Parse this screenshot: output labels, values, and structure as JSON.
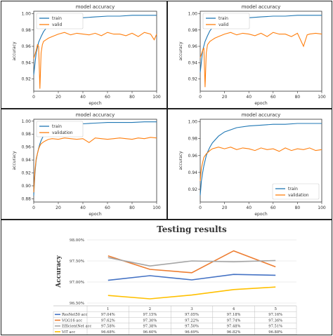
{
  "colors": {
    "train": "#1f77b4",
    "valid": "#ff7f0e",
    "resnet": "#4472c4",
    "vgg": "#ed7d31",
    "efficientnet": "#a5a5a5",
    "vit": "#ffc000"
  },
  "chart_data": [
    {
      "type": "line",
      "title": "model accuracy",
      "xlabel": "epoch",
      "ylabel": "accuracy",
      "xlim": [
        0,
        100
      ],
      "ylim": [
        0.905,
        1.003
      ],
      "xticks": [
        0,
        20,
        40,
        60,
        80,
        100
      ],
      "yticks": [
        0.92,
        0.94,
        0.96,
        0.98,
        1.0
      ],
      "ytick_labels": [
        "0.92",
        "0.94",
        "0.96",
        "0.98",
        "1.00"
      ],
      "legend": "upper-left",
      "series": [
        {
          "name": "train",
          "x": [
            0,
            2,
            4,
            6,
            8,
            10,
            15,
            20,
            25,
            30,
            40,
            50,
            60,
            70,
            80,
            90,
            100
          ],
          "y": [
            0.925,
            0.952,
            0.965,
            0.972,
            0.978,
            0.982,
            0.987,
            0.99,
            0.992,
            0.994,
            0.995,
            0.996,
            0.997,
            0.997,
            0.998,
            0.998,
            0.998
          ]
        },
        {
          "name": "valid",
          "x": [
            0,
            2,
            3,
            4,
            5,
            6,
            7,
            8,
            10,
            12,
            15,
            20,
            25,
            30,
            35,
            40,
            45,
            50,
            55,
            60,
            65,
            70,
            75,
            80,
            85,
            90,
            95,
            98,
            100
          ],
          "y": [
            0.945,
            0.955,
            0.962,
            0.96,
            0.908,
            0.952,
            0.962,
            0.966,
            0.968,
            0.97,
            0.972,
            0.975,
            0.977,
            0.974,
            0.976,
            0.975,
            0.974,
            0.976,
            0.973,
            0.977,
            0.975,
            0.975,
            0.973,
            0.976,
            0.972,
            0.977,
            0.975,
            0.968,
            0.975
          ]
        }
      ]
    },
    {
      "type": "line",
      "title": "model accuracy",
      "xlabel": "epoch",
      "ylabel": "accuracy",
      "xlim": [
        0,
        100
      ],
      "ylim": [
        0.905,
        1.003
      ],
      "xticks": [
        0,
        20,
        40,
        60,
        80,
        100
      ],
      "yticks": [
        0.92,
        0.94,
        0.96,
        0.98,
        1.0
      ],
      "ytick_labels": [
        "0.92",
        "0.94",
        "0.96",
        "0.98",
        "1.00"
      ],
      "legend": "upper-left",
      "series": [
        {
          "name": "train",
          "x": [
            0,
            2,
            4,
            6,
            8,
            10,
            15,
            20,
            25,
            30,
            40,
            50,
            60,
            70,
            80,
            90,
            100
          ],
          "y": [
            0.928,
            0.955,
            0.966,
            0.973,
            0.979,
            0.983,
            0.988,
            0.991,
            0.993,
            0.994,
            0.995,
            0.996,
            0.997,
            0.997,
            0.998,
            0.998,
            0.998
          ]
        },
        {
          "name": "valid",
          "x": [
            0,
            2,
            3,
            4,
            5,
            6,
            8,
            10,
            12,
            15,
            20,
            25,
            30,
            35,
            40,
            45,
            50,
            55,
            60,
            65,
            70,
            75,
            80,
            85,
            88,
            90,
            95,
            100
          ],
          "y": [
            0.946,
            0.955,
            0.958,
            0.91,
            0.952,
            0.962,
            0.966,
            0.968,
            0.97,
            0.972,
            0.975,
            0.977,
            0.974,
            0.976,
            0.975,
            0.973,
            0.976,
            0.972,
            0.977,
            0.975,
            0.975,
            0.972,
            0.976,
            0.96,
            0.974,
            0.975,
            0.976,
            0.975
          ]
        }
      ]
    },
    {
      "type": "line",
      "title": "model accuracy",
      "xlabel": "epoch",
      "ylabel": "accuracy",
      "xlim": [
        0,
        100
      ],
      "ylim": [
        0.875,
        1.003
      ],
      "xticks": [
        0,
        20,
        40,
        60,
        80,
        100
      ],
      "yticks": [
        0.88,
        0.9,
        0.92,
        0.94,
        0.96,
        0.98,
        1.0
      ],
      "ytick_labels": [
        "0.88",
        "0.90",
        "0.92",
        "0.94",
        "0.96",
        "0.98",
        "1.00"
      ],
      "legend": "upper-left",
      "series": [
        {
          "name": "train",
          "x": [
            0,
            1,
            2,
            3,
            4,
            5,
            6,
            8,
            10,
            15,
            20,
            30,
            40,
            50,
            60,
            70,
            80,
            90,
            100
          ],
          "y": [
            0.885,
            0.92,
            0.94,
            0.95,
            0.958,
            0.965,
            0.97,
            0.978,
            0.984,
            0.99,
            0.993,
            0.995,
            0.996,
            0.997,
            0.998,
            0.998,
            0.998,
            0.999,
            0.999
          ]
        },
        {
          "name": "validation",
          "x": [
            0,
            1,
            2,
            3,
            4,
            5,
            6,
            8,
            10,
            12,
            15,
            20,
            25,
            30,
            35,
            40,
            45,
            50,
            55,
            60,
            65,
            70,
            75,
            80,
            85,
            90,
            95,
            100
          ],
          "y": [
            0.89,
            0.925,
            0.942,
            0.95,
            0.957,
            0.962,
            0.965,
            0.968,
            0.97,
            0.972,
            0.973,
            0.972,
            0.974,
            0.973,
            0.972,
            0.973,
            0.967,
            0.974,
            0.973,
            0.972,
            0.973,
            0.974,
            0.973,
            0.972,
            0.974,
            0.973,
            0.975,
            0.974
          ]
        }
      ]
    },
    {
      "type": "line",
      "title": "model accuracy",
      "xlabel": "epoch",
      "ylabel": "accuracy",
      "xlim": [
        0,
        100
      ],
      "ylim": [
        0.905,
        1.003
      ],
      "xticks": [
        0,
        20,
        40,
        60,
        80,
        100
      ],
      "yticks": [
        0.92,
        0.94,
        0.96,
        0.98,
        1.0
      ],
      "ytick_labels": [
        "0.92",
        "0.94",
        "0.96",
        "0.98",
        "1.00"
      ],
      "legend": "lower-right",
      "series": [
        {
          "name": "train",
          "x": [
            0,
            1,
            2,
            3,
            4,
            5,
            6,
            8,
            10,
            15,
            20,
            30,
            40,
            50,
            60,
            70,
            80,
            90,
            100
          ],
          "y": [
            0.913,
            0.93,
            0.94,
            0.948,
            0.954,
            0.96,
            0.964,
            0.97,
            0.975,
            0.983,
            0.988,
            0.993,
            0.995,
            0.996,
            0.997,
            0.997,
            0.998,
            0.998,
            0.998
          ]
        },
        {
          "name": "validation",
          "x": [
            0,
            1,
            2,
            3,
            5,
            8,
            10,
            15,
            20,
            25,
            30,
            35,
            40,
            45,
            50,
            55,
            60,
            65,
            70,
            75,
            80,
            85,
            90,
            95,
            100
          ],
          "y": [
            0.93,
            0.945,
            0.952,
            0.958,
            0.962,
            0.966,
            0.968,
            0.97,
            0.968,
            0.97,
            0.967,
            0.969,
            0.968,
            0.966,
            0.969,
            0.967,
            0.968,
            0.965,
            0.969,
            0.966,
            0.968,
            0.967,
            0.969,
            0.966,
            0.967
          ]
        }
      ]
    },
    {
      "type": "line",
      "title": "Testing results",
      "ylabel": "Accuracy",
      "categories": [
        "1",
        "2",
        "3",
        "4",
        "5"
      ],
      "ylim": [
        0.965,
        0.98
      ],
      "yticks": [
        0.965,
        0.97,
        0.975,
        0.98
      ],
      "ytick_labels": [
        "96.50%",
        "97.00%",
        "97.50%",
        "98.00%"
      ],
      "legend": "table-below",
      "series": [
        {
          "name": "ResNet50 acc",
          "values": [
            0.9704,
            0.9715,
            0.9705,
            0.9718,
            0.9716
          ],
          "labels": [
            "97.04%",
            "97.15%",
            "97.05%",
            "97.18%",
            "97.16%"
          ]
        },
        {
          "name": "VGG16 acc",
          "values": [
            0.9762,
            0.973,
            0.9722,
            0.9774,
            0.9736
          ],
          "labels": [
            "97.62%",
            "97.30%",
            "97.22%",
            "97.74%",
            "97.36%"
          ]
        },
        {
          "name": "EfficientNet acc",
          "values": [
            0.9758,
            0.9738,
            0.975,
            0.9748,
            0.9751
          ],
          "labels": [
            "97.58%",
            "97.38%",
            "97.50%",
            "97.48%",
            "97.51%"
          ]
        },
        {
          "name": "ViT acc",
          "values": [
            0.9668,
            0.966,
            0.9669,
            0.9682,
            0.9688
          ],
          "labels": [
            "96.68%",
            "96.60%",
            "96.69%",
            "96.82%",
            "96.88%"
          ]
        }
      ]
    }
  ]
}
